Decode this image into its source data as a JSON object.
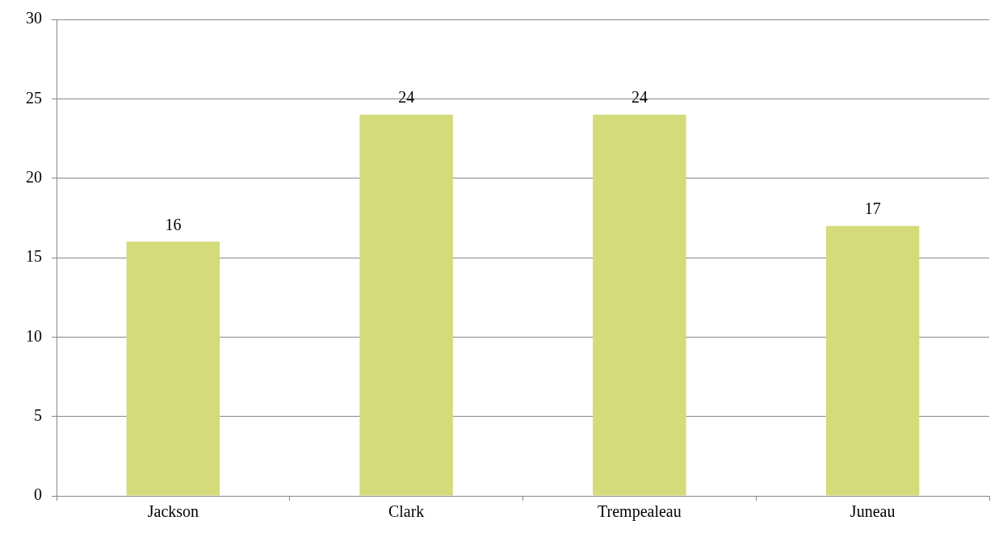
{
  "chart_data": {
    "type": "bar",
    "categories": [
      "Jackson",
      "Clark",
      "Trempealeau",
      "Juneau"
    ],
    "values": [
      16,
      24,
      24,
      17
    ],
    "color": "#d4db7a",
    "ylim": [
      0,
      30
    ],
    "yticks": [
      0,
      5,
      10,
      15,
      20,
      25,
      30
    ],
    "grid": "y",
    "data_labels": true,
    "legend": false
  }
}
